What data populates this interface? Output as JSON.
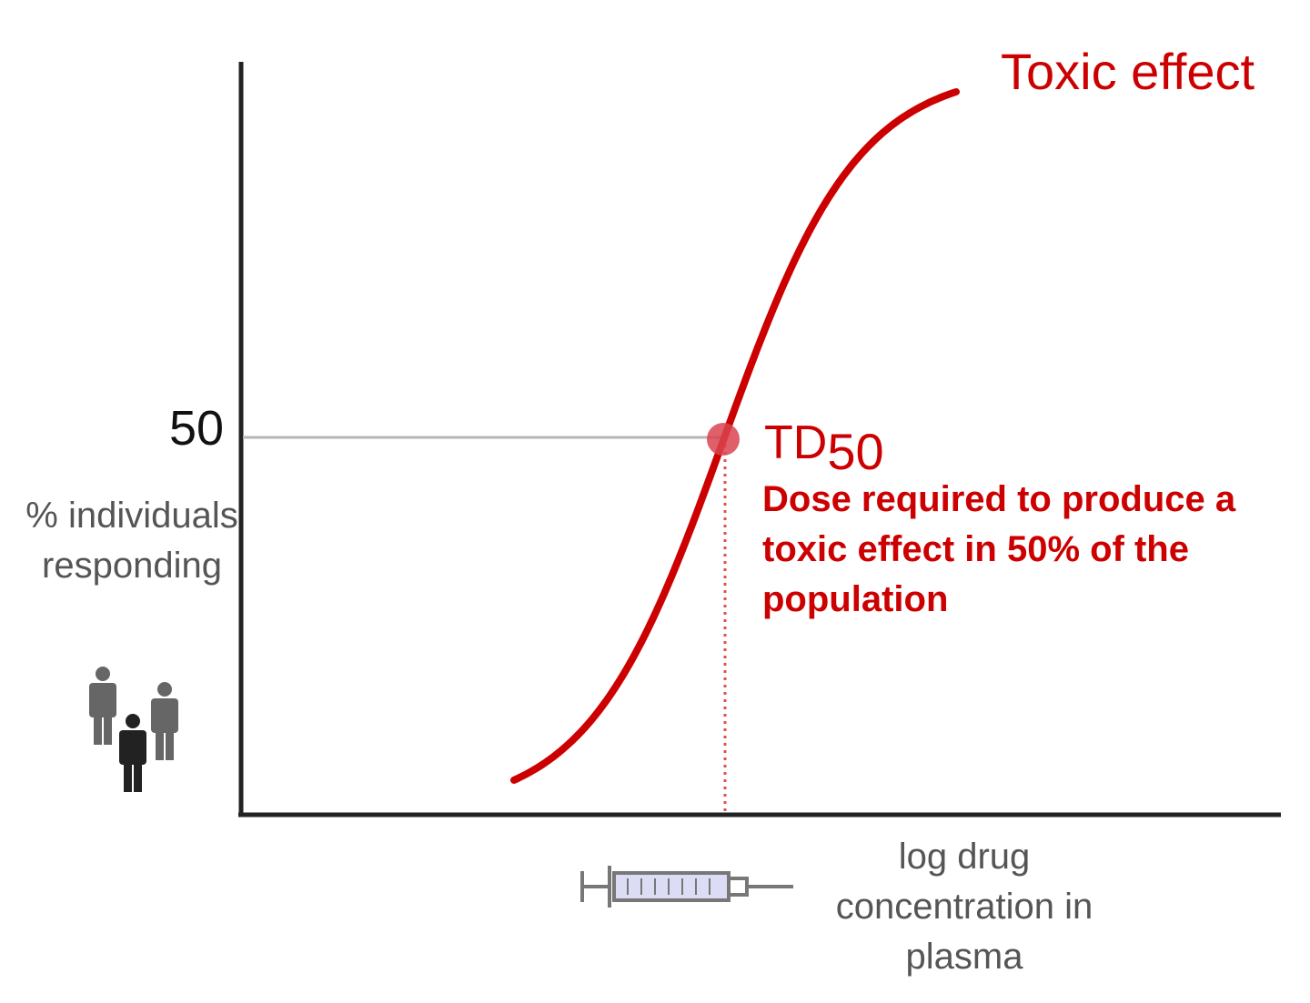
{
  "chart_data": {
    "type": "line",
    "title": "",
    "xlabel": "log drug concentration in plasma",
    "ylabel": "% individuals responding",
    "yticks": [
      {
        "value": 50,
        "label": "50"
      }
    ],
    "ylim": [
      0,
      100
    ],
    "grid": false,
    "series": [
      {
        "name": "Toxic effect",
        "color": "#cc0000",
        "midpoint_y": 50,
        "shape": "sigmoid"
      }
    ],
    "annotations": [
      {
        "label_main": "TD",
        "label_sub": "50",
        "text": "Dose required to produce a toxic effect in 50% of the population",
        "y": 50,
        "color": "#cc0000"
      }
    ],
    "icons": {
      "ylabel_icon": "people-icon",
      "xlabel_icon": "syringe-icon"
    }
  }
}
